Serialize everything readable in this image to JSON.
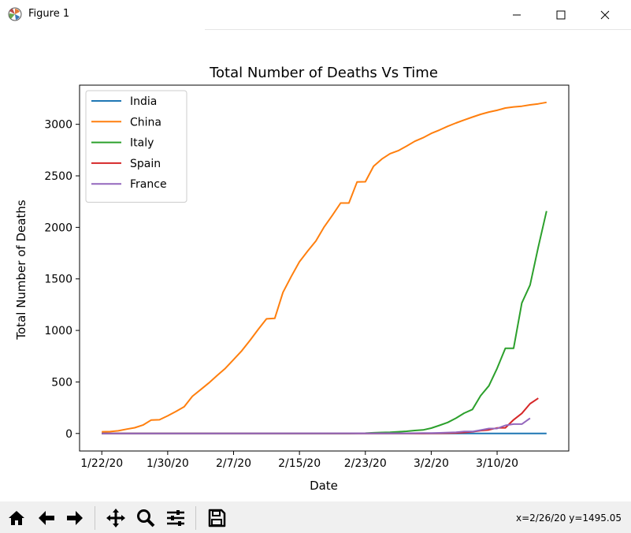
{
  "window": {
    "title": "Figure 1"
  },
  "toolbar": {
    "buttons": [
      "home-icon",
      "back-icon",
      "forward-icon",
      "pan-icon",
      "zoom-icon",
      "configure-icon",
      "save-icon"
    ],
    "coords": "x=2/26/20 y=1495.05"
  },
  "chart_data": {
    "type": "line",
    "title": "Total Number of Deaths Vs Time",
    "xlabel": "Date",
    "ylabel": "Total Number of Deaths",
    "x_start": "1/22/20",
    "x_ticks": [
      "1/22/20",
      "1/30/20",
      "2/7/20",
      "2/15/20",
      "2/23/20",
      "3/2/20",
      "3/10/20"
    ],
    "y_ticks": [
      0,
      500,
      1000,
      1500,
      2000,
      2500,
      3000
    ],
    "ylim": [
      -170,
      3380
    ],
    "grid": false,
    "legend": "top-left",
    "series": [
      {
        "name": "India",
        "color": "#1f77b4",
        "points": [
          [
            0,
            0
          ],
          [
            54,
            0
          ]
        ]
      },
      {
        "name": "China",
        "color": "#ff7f0e",
        "points": [
          [
            0,
            17
          ],
          [
            1,
            18
          ],
          [
            2,
            26
          ],
          [
            3,
            42
          ],
          [
            4,
            56
          ],
          [
            5,
            82
          ],
          [
            6,
            131
          ],
          [
            7,
            133
          ],
          [
            8,
            171
          ],
          [
            9,
            213
          ],
          [
            10,
            259
          ],
          [
            11,
            361
          ],
          [
            12,
            425
          ],
          [
            13,
            490
          ],
          [
            14,
            562
          ],
          [
            15,
            632
          ],
          [
            16,
            717
          ],
          [
            17,
            803
          ],
          [
            18,
            904
          ],
          [
            19,
            1011
          ],
          [
            20,
            1112
          ],
          [
            21,
            1117
          ],
          [
            22,
            1369
          ],
          [
            23,
            1523
          ],
          [
            24,
            1666
          ],
          [
            25,
            1770
          ],
          [
            26,
            1868
          ],
          [
            27,
            2004
          ],
          [
            28,
            2118
          ],
          [
            29,
            2236
          ],
          [
            30,
            2236
          ],
          [
            31,
            2441
          ],
          [
            32,
            2443
          ],
          [
            33,
            2593
          ],
          [
            34,
            2663
          ],
          [
            35,
            2715
          ],
          [
            36,
            2744
          ],
          [
            37,
            2788
          ],
          [
            38,
            2835
          ],
          [
            39,
            2870
          ],
          [
            40,
            2912
          ],
          [
            41,
            2945
          ],
          [
            42,
            2981
          ],
          [
            43,
            3013
          ],
          [
            44,
            3042
          ],
          [
            45,
            3070
          ],
          [
            46,
            3097
          ],
          [
            47,
            3119
          ],
          [
            48,
            3136
          ],
          [
            49,
            3158
          ],
          [
            50,
            3169
          ],
          [
            51,
            3176
          ],
          [
            52,
            3189
          ],
          [
            53,
            3199
          ],
          [
            54,
            3213
          ]
        ]
      },
      {
        "name": "Italy",
        "color": "#2ca02c",
        "points": [
          [
            0,
            0
          ],
          [
            30,
            0
          ],
          [
            31,
            2
          ],
          [
            32,
            3
          ],
          [
            33,
            7
          ],
          [
            34,
            10
          ],
          [
            35,
            12
          ],
          [
            36,
            17
          ],
          [
            37,
            21
          ],
          [
            38,
            29
          ],
          [
            39,
            34
          ],
          [
            40,
            52
          ],
          [
            41,
            79
          ],
          [
            42,
            107
          ],
          [
            43,
            148
          ],
          [
            44,
            197
          ],
          [
            45,
            233
          ],
          [
            46,
            366
          ],
          [
            47,
            463
          ],
          [
            48,
            631
          ],
          [
            49,
            827
          ],
          [
            50,
            827
          ],
          [
            51,
            1266
          ],
          [
            52,
            1441
          ],
          [
            53,
            1809
          ],
          [
            54,
            2158
          ]
        ]
      },
      {
        "name": "Spain",
        "color": "#d62728",
        "points": [
          [
            0,
            0
          ],
          [
            39,
            0
          ],
          [
            40,
            1
          ],
          [
            41,
            2
          ],
          [
            42,
            3
          ],
          [
            43,
            5
          ],
          [
            44,
            10
          ],
          [
            45,
            17
          ],
          [
            46,
            28
          ],
          [
            47,
            35
          ],
          [
            48,
            54
          ],
          [
            49,
            55
          ],
          [
            50,
            133
          ],
          [
            51,
            195
          ],
          [
            52,
            289
          ],
          [
            53,
            342
          ]
        ]
      },
      {
        "name": "France",
        "color": "#9467bd",
        "points": [
          [
            0,
            0
          ],
          [
            23,
            1
          ],
          [
            37,
            2
          ],
          [
            38,
            3
          ],
          [
            39,
            4
          ],
          [
            40,
            4
          ],
          [
            41,
            6
          ],
          [
            42,
            9
          ],
          [
            43,
            11
          ],
          [
            44,
            19
          ],
          [
            45,
            19
          ],
          [
            46,
            33
          ],
          [
            47,
            48
          ],
          [
            48,
            48
          ],
          [
            49,
            79
          ],
          [
            50,
            91
          ],
          [
            51,
            91
          ],
          [
            52,
            148
          ]
        ]
      }
    ]
  }
}
